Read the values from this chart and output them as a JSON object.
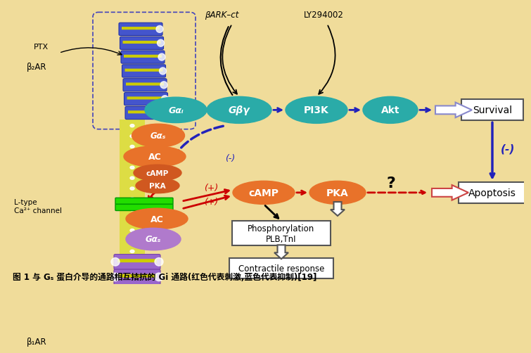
{
  "bg_color": "#F0DC9A",
  "title_text": "图 1 与 Gₛ 蛋白介导的通路相互拮抗的 Gi 通路(红色代表刺激,蓝色代表抑制)[19]",
  "teal_color": "#2AABA8",
  "orange_color": "#E8722A",
  "red_color": "#CC0000",
  "blue_color": "#2222BB",
  "green_color": "#00CC00",
  "purple_receptor": "#9966CC",
  "blue_receptor": "#4455CC",
  "yellow_stripe": "#CCCC00",
  "box_survival": "Survival",
  "box_apoptosis": "Apoptosis",
  "box_phosphorylation": "Phosphorylation\nPLB,TnI",
  "box_contractile": "Contractile response",
  "label_ptx": "PTX",
  "label_b2ar": "β₂AR",
  "label_b1ar": "β₁AR",
  "label_ltype": "L-type\nCa²⁺ channel",
  "label_bark": "βARK–ct",
  "label_ly": "LY294002",
  "node_galphaj": "Gαᵢ",
  "node_galphas_top": "Gαₛ",
  "node_ac_top": "AC",
  "node_camp_top": "cAMP",
  "node_pka_top": "PKA",
  "node_gbg": "Gβγ",
  "node_pi3k": "PI3K",
  "node_akt": "Akt",
  "node_camp": "cAMP",
  "node_pka": "PKA",
  "node_ac_bot": "AC",
  "node_galphas_bot": "Gαₛ"
}
